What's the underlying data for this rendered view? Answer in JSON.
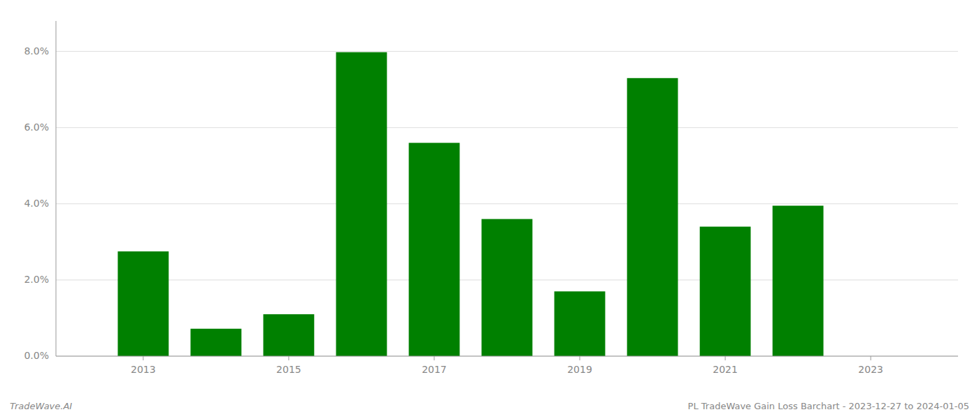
{
  "chart_data": {
    "type": "bar",
    "x": [
      2013,
      2014,
      2015,
      2016,
      2017,
      2018,
      2019,
      2020,
      2021,
      2022
    ],
    "values": [
      0.0275,
      0.0072,
      0.011,
      0.0798,
      0.056,
      0.036,
      0.017,
      0.073,
      0.034,
      0.0395
    ],
    "color": "#008000",
    "xlim": [
      2011.8,
      2024.2
    ],
    "xticks": [
      2013,
      2015,
      2017,
      2019,
      2021,
      2023
    ],
    "ylim": [
      0,
      0.088
    ],
    "yticks": [
      {
        "value": 0.0,
        "label": "0.0%"
      },
      {
        "value": 0.02,
        "label": "2.0%"
      },
      {
        "value": 0.04,
        "label": "4.0%"
      },
      {
        "value": 0.06,
        "label": "6.0%"
      },
      {
        "value": 0.08,
        "label": "8.0%"
      }
    ],
    "grid": true,
    "annotations": [
      "TradeWave.AI",
      "PL TradeWave Gain Loss Barchart - 2023-12-27 to 2024-01-05"
    ]
  }
}
